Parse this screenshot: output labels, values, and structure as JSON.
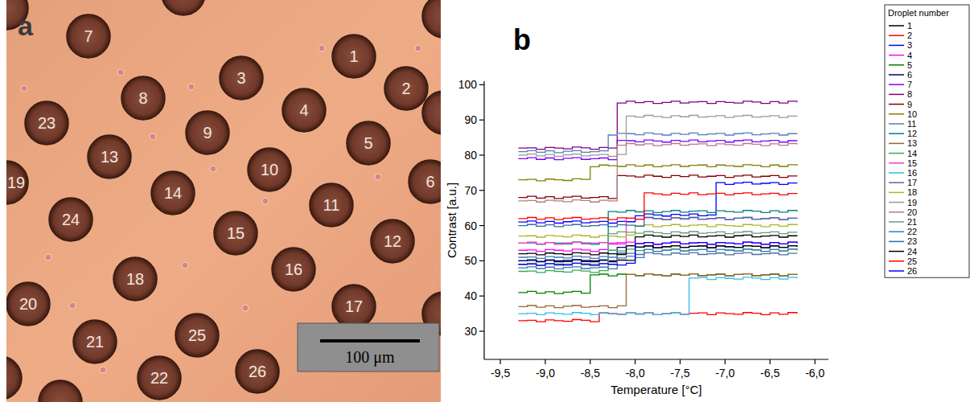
{
  "image": {
    "letter": "a",
    "droplets": [
      1,
      2,
      3,
      4,
      5,
      6,
      7,
      8,
      9,
      10,
      11,
      12,
      13,
      14,
      15,
      16,
      17,
      18,
      19,
      20,
      21,
      22,
      23,
      24,
      25,
      26
    ],
    "scale_bar": "100 μm"
  },
  "chart_data": {
    "type": "line",
    "panel_label": "b",
    "line_style": "step",
    "x_label": "Temperature [°C]",
    "y_label": "Contrast [a.u.]",
    "legend": "right",
    "legend_title": "Droplet number",
    "xlim": [
      -9.68,
      -5.85
    ],
    "ylim": [
      22,
      101
    ],
    "xticks": [
      {
        "value": -9.5,
        "label": "-9,5"
      },
      {
        "value": -9.0,
        "label": "-9,0"
      },
      {
        "value": -8.5,
        "label": "-8,5"
      },
      {
        "value": -8.0,
        "label": "-8,0"
      },
      {
        "value": -7.5,
        "label": "-7,5"
      },
      {
        "value": -7.0,
        "label": "-7,0"
      },
      {
        "value": -6.5,
        "label": "-6,5"
      },
      {
        "value": -6.0,
        "label": "-6,0"
      }
    ],
    "yticks": [
      30,
      40,
      50,
      60,
      70,
      80,
      90,
      100
    ],
    "x": [
      -9.3,
      -9.2,
      -9.1,
      -9,
      -8.9,
      -8.8,
      -8.7,
      -8.6,
      -8.5,
      -8.4,
      -8.3,
      -8.2,
      -8.1,
      -8,
      -7.9,
      -7.8,
      -7.7,
      -7.6,
      -7.5,
      -7.4,
      -7.3,
      -7.2,
      -7.1,
      -7,
      -6.9,
      -6.8,
      -6.7,
      -6.6,
      -6.5,
      -6.4,
      -6.3,
      -6.2
    ],
    "series": [
      {
        "name": "1",
        "color": "#000000",
        "values": [
          50,
          50.3,
          49.8,
          50.2,
          49.7,
          50.1,
          50.3,
          49.8,
          50,
          50.2,
          49.7,
          50.2,
          50.1,
          56.8,
          57.3,
          57,
          56.7,
          57.2,
          56.9,
          57.3,
          56.8,
          57,
          57.2,
          56.7,
          57.1,
          57.3,
          56.8,
          57,
          57.2,
          56.7,
          57.1,
          57
        ]
      },
      {
        "name": "2",
        "color": "#ff0000",
        "values": [
          33,
          33.1,
          32.7,
          33.2,
          33,
          32.8,
          33.3,
          33.1,
          32.7,
          35.2,
          35,
          34.8,
          35.3,
          34.9,
          35.2,
          34.7,
          35,
          35.3,
          34.8,
          35.1,
          35.2,
          34.7,
          35.2,
          35,
          34.8,
          35.3,
          35.1,
          34.7,
          35.2,
          34.8,
          35.3,
          35
        ]
      },
      {
        "name": "3",
        "color": "#0000ff",
        "values": [
          61,
          61.3,
          60.8,
          61.2,
          60.7,
          61.1,
          61.3,
          60.8,
          61,
          61.2,
          60.7,
          61.2,
          61.1,
          62.8,
          63.3,
          63,
          62.7,
          63.2,
          62.9,
          63.3,
          62.8,
          63,
          72.2,
          71.7,
          72.1,
          72.3,
          71.8,
          72,
          72.2,
          71.7,
          72.1,
          72
        ]
      },
      {
        "name": "4",
        "color": "#ff00ff",
        "values": [
          53,
          53.1,
          52.7,
          53.2,
          53,
          52.8,
          53.3,
          53.1,
          52.7,
          53.2,
          55,
          54.8,
          55.3,
          54.9,
          55.2,
          54.7,
          55,
          55.3,
          54.8,
          55.1,
          55.2,
          54.7,
          55.2,
          55,
          54.8,
          55.3,
          55.1,
          54.7,
          55.2,
          54.8,
          55.3,
          55
        ]
      },
      {
        "name": "5",
        "color": "#008000",
        "values": [
          41,
          41.3,
          40.8,
          41.2,
          40.7,
          41.1,
          41.3,
          40.8,
          46,
          46.2,
          45.7,
          46.2,
          46.1,
          45.8,
          46.3,
          46,
          45.7,
          46.2,
          45.9,
          46.3,
          45.8,
          46,
          46.2,
          45.7,
          46.1,
          46.3,
          45.8,
          46,
          46.2,
          45.7,
          46.1,
          46
        ]
      },
      {
        "name": "6",
        "color": "#000080",
        "values": [
          50,
          50.1,
          49.7,
          50.2,
          50,
          49.8,
          50.3,
          50.1,
          49.7,
          50.2,
          50,
          53.8,
          54.3,
          53.9,
          54.2,
          53.7,
          54,
          54.3,
          53.8,
          54.1,
          54.2,
          53.7,
          54.2,
          54,
          53.8,
          54.3,
          54.1,
          53.7,
          54.2,
          53.8,
          54.3,
          54
        ]
      },
      {
        "name": "7",
        "color": "#8000ff",
        "values": [
          79,
          79.3,
          78.8,
          79.2,
          78.7,
          79.1,
          79.3,
          78.8,
          79,
          79.2,
          78.7,
          84.2,
          84.1,
          83.8,
          84.3,
          84,
          83.7,
          84.2,
          83.9,
          84.3,
          83.8,
          84,
          84.2,
          83.7,
          84.1,
          84.3,
          83.8,
          84,
          84.2,
          83.7,
          84.1,
          84
        ]
      },
      {
        "name": "8",
        "color": "#800080",
        "values": [
          82,
          82.1,
          81.7,
          82.2,
          82,
          81.8,
          82.3,
          82.1,
          81.7,
          82.2,
          82,
          94.8,
          95.3,
          94.9,
          95.2,
          94.7,
          95,
          95.3,
          94.8,
          95.1,
          95.2,
          94.7,
          95.2,
          95,
          94.8,
          95.3,
          95.1,
          94.7,
          95.2,
          94.8,
          95.3,
          95
        ]
      },
      {
        "name": "9",
        "color": "#800000",
        "values": [
          68,
          68.3,
          67.8,
          68.2,
          67.7,
          68.1,
          68.3,
          67.8,
          68,
          68.2,
          67.7,
          74.2,
          74.1,
          73.8,
          74.3,
          74,
          73.7,
          74.2,
          73.9,
          74.3,
          73.8,
          74,
          74.2,
          73.7,
          74.1,
          74.3,
          73.8,
          74,
          74.2,
          73.7,
          74.1,
          74
        ]
      },
      {
        "name": "10",
        "color": "#808000",
        "values": [
          73,
          73.1,
          72.7,
          73.2,
          73,
          72.8,
          73.3,
          73.1,
          76.7,
          77.2,
          77,
          76.8,
          77.3,
          76.9,
          77.2,
          76.7,
          77,
          77.3,
          76.8,
          77.1,
          77.2,
          76.7,
          77.2,
          77,
          76.8,
          77.3,
          77.1,
          76.7,
          77.2,
          76.8,
          77.3,
          77
        ]
      },
      {
        "name": "11",
        "color": "#4f81bd",
        "values": [
          81,
          81.3,
          80.8,
          81.2,
          80.7,
          81.1,
          81.3,
          80.8,
          81,
          81.2,
          85.7,
          86.2,
          86.1,
          85.8,
          86.3,
          86,
          85.7,
          86.2,
          85.9,
          86.3,
          85.8,
          86,
          86.2,
          85.7,
          86.1,
          86.3,
          85.8,
          86,
          86.2,
          85.7,
          86.1,
          86
        ]
      },
      {
        "name": "12",
        "color": "#008080",
        "values": [
          55,
          55.1,
          54.7,
          55.2,
          55,
          54.8,
          55.3,
          55.1,
          54.7,
          55.2,
          64,
          63.8,
          64.3,
          63.9,
          64.2,
          63.7,
          64,
          64.3,
          63.8,
          64.1,
          64.2,
          63.7,
          64.2,
          64,
          63.8,
          64.3,
          64.1,
          63.7,
          64.2,
          63.8,
          64.3,
          64
        ]
      },
      {
        "name": "13",
        "color": "#996633",
        "values": [
          37,
          37.3,
          36.8,
          37.2,
          36.7,
          37.1,
          37.3,
          36.8,
          37,
          37.2,
          36.7,
          37.2,
          46.1,
          45.8,
          46.3,
          46,
          45.7,
          46.2,
          45.9,
          46.3,
          45.8,
          46,
          46.2,
          45.7,
          46.1,
          46.3,
          45.8,
          46,
          46.2,
          45.7,
          46.1,
          46
        ]
      },
      {
        "name": "14",
        "color": "#33aa55",
        "values": [
          47,
          47.1,
          46.7,
          47.2,
          47,
          46.8,
          47.3,
          47.1,
          46.7,
          47.2,
          53,
          52.8,
          53.3,
          52.9,
          53.2,
          52.7,
          53,
          53.3,
          52.8,
          53.1,
          53.2,
          52.7,
          53.2,
          53,
          52.8,
          53.3,
          53.1,
          52.7,
          53.2,
          52.8,
          53.3,
          53
        ]
      },
      {
        "name": "15",
        "color": "#ff33cc",
        "values": [
          55,
          55.3,
          54.8,
          55.2,
          54.7,
          55.1,
          55.3,
          54.8,
          55,
          55.2,
          54.7,
          55.2,
          62.1,
          61.8,
          62.3,
          62,
          61.7,
          62.2,
          61.9,
          62.3,
          61.8,
          62,
          62.2,
          61.7,
          62.1,
          62.3,
          61.8,
          62,
          62.2,
          61.7,
          62.1,
          62
        ]
      },
      {
        "name": "16",
        "color": "#33bbee",
        "values": [
          35,
          35.1,
          34.7,
          35.2,
          35,
          34.8,
          35.3,
          35.1,
          34.7,
          35.2,
          35,
          34.8,
          35.3,
          34.9,
          35.2,
          34.7,
          35,
          35.3,
          34.8,
          45.1,
          45.2,
          44.7,
          45.2,
          45,
          44.8,
          45.3,
          45.1,
          44.7,
          45.2,
          44.8,
          45.3,
          45
        ]
      },
      {
        "name": "17",
        "color": "#4a6fa5",
        "values": [
          48,
          48.3,
          47.8,
          48.2,
          47.7,
          48.1,
          48.3,
          47.8,
          48,
          48.2,
          47.7,
          52.2,
          52.1,
          51.8,
          52.3,
          52,
          51.7,
          52.2,
          51.9,
          52.3,
          51.8,
          52,
          52.2,
          51.7,
          52.1,
          52.3,
          51.8,
          52,
          52.2,
          51.7,
          52.1,
          52
        ]
      },
      {
        "name": "18",
        "color": "#a8b82a",
        "values": [
          57,
          57.1,
          56.7,
          57.2,
          57,
          56.8,
          57.3,
          57.1,
          56.7,
          57.2,
          57,
          56.8,
          57.3,
          59.9,
          60.2,
          59.7,
          60,
          60.3,
          59.8,
          60.1,
          60.2,
          59.7,
          60.2,
          60,
          59.8,
          60.3,
          60.1,
          59.7,
          60.2,
          59.8,
          60.3,
          60
        ]
      },
      {
        "name": "19",
        "color": "#999999",
        "values": [
          80,
          80.3,
          79.8,
          80.2,
          79.7,
          80.1,
          80.3,
          79.8,
          80,
          80.2,
          79.7,
          80.2,
          91.1,
          90.8,
          91.3,
          91,
          90.7,
          91.2,
          90.9,
          91.3,
          90.8,
          91,
          91.2,
          90.7,
          91.1,
          91.3,
          90.8,
          91,
          91.2,
          90.7,
          91.1,
          91
        ]
      },
      {
        "name": "20",
        "color": "#b07f7f",
        "values": [
          67,
          67.1,
          66.7,
          67.2,
          67,
          66.8,
          67.3,
          67.1,
          66.7,
          67.2,
          67,
          82.8,
          83.3,
          82.9,
          83.2,
          82.7,
          83,
          83.3,
          82.8,
          83.1,
          83.2,
          82.7,
          83.2,
          83,
          82.8,
          83.3,
          83.1,
          82.7,
          83.2,
          82.8,
          83.3,
          83
        ]
      },
      {
        "name": "21",
        "color": "#5f9f7f",
        "values": [
          49,
          49.3,
          48.8,
          49.2,
          48.7,
          49.1,
          49.3,
          48.8,
          49,
          49.2,
          57.7,
          58.2,
          58.1,
          57.8,
          58.3,
          58,
          57.7,
          58.2,
          57.9,
          58.3,
          57.8,
          58,
          58.2,
          57.7,
          58.1,
          58.3,
          57.8,
          58,
          58.2,
          57.7,
          58.1,
          58
        ]
      },
      {
        "name": "22",
        "color": "#3d7ab8",
        "values": [
          51,
          51.1,
          50.7,
          51.2,
          51,
          50.8,
          51.3,
          51.1,
          50.7,
          51.2,
          51,
          50.8,
          51.3,
          50.9,
          53.2,
          52.7,
          53,
          53.3,
          52.8,
          53.1,
          53.2,
          52.7,
          53.2,
          53,
          52.8,
          53.3,
          53.1,
          52.7,
          53.2,
          52.8,
          53.3,
          53
        ]
      },
      {
        "name": "23",
        "color": "#2f6f9f",
        "values": [
          60,
          60.3,
          59.8,
          60.2,
          59.7,
          60.1,
          60.3,
          59.8,
          60,
          60.2,
          59.7,
          60.2,
          60.1,
          59.8,
          62.3,
          62,
          61.7,
          62.2,
          61.9,
          62.3,
          61.8,
          62,
          62.2,
          61.7,
          62.1,
          62.3,
          61.8,
          62,
          62.2,
          61.7,
          62.1,
          62
        ]
      },
      {
        "name": "24",
        "color": "#000000",
        "values": [
          52,
          52.1,
          51.7,
          52.2,
          52,
          51.8,
          52.3,
          52.1,
          51.7,
          52.2,
          52,
          51.8,
          54.3,
          53.9,
          54.2,
          53.7,
          54,
          54.3,
          53.8,
          54.1,
          54.2,
          53.7,
          54.2,
          54,
          53.8,
          54.3,
          54.1,
          53.7,
          54.2,
          53.8,
          54.3,
          54
        ]
      },
      {
        "name": "25",
        "color": "#ff0000",
        "values": [
          62,
          62.3,
          61.8,
          62.2,
          61.7,
          62.1,
          62.3,
          61.8,
          62,
          62.2,
          61.7,
          62.2,
          62.1,
          61.8,
          69.3,
          69,
          68.7,
          69.2,
          68.9,
          69.3,
          68.8,
          69,
          69.2,
          68.7,
          69.1,
          69.3,
          68.8,
          69,
          69.2,
          68.7,
          69.1,
          69
        ]
      },
      {
        "name": "26",
        "color": "#0000ff",
        "values": [
          49,
          49.1,
          48.7,
          49.2,
          49,
          48.8,
          49.3,
          49.1,
          48.7,
          49.2,
          49,
          48.8,
          49.3,
          54.9,
          55.2,
          54.7,
          55,
          55.3,
          54.8,
          55.1,
          55.2,
          54.7,
          55.2,
          55,
          54.8,
          55.3,
          55.1,
          54.7,
          55.2,
          54.8,
          55.3,
          55
        ]
      }
    ]
  }
}
